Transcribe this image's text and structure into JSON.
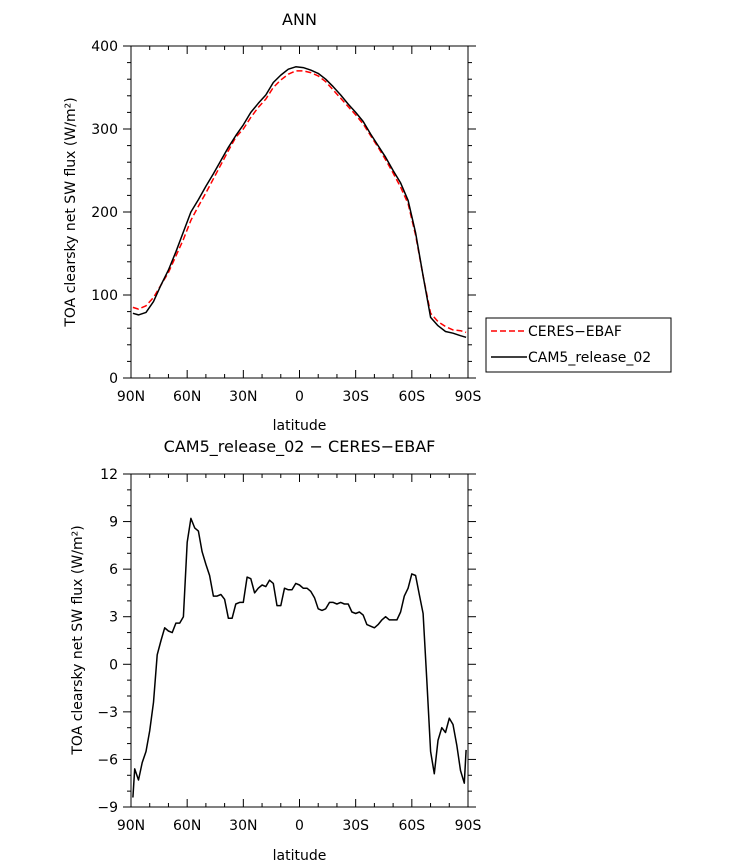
{
  "chart_data": [
    {
      "type": "line",
      "title": "ANN",
      "xlabel": "latitude",
      "ylabel": "TOA clearsky net SW flux (W/m²)",
      "xticks": [
        "90N",
        "60N",
        "30N",
        "0",
        "30S",
        "60S",
        "90S"
      ],
      "yticks": [
        "0",
        "100",
        "200",
        "300",
        "400"
      ],
      "xlim": [
        90,
        -90
      ],
      "ylim": [
        0,
        400
      ],
      "legend": {
        "placement": "right"
      },
      "series": [
        {
          "name": "CERES−EBAF",
          "color": "#ff0000",
          "dash": "dashed",
          "x": [
            89,
            86,
            82,
            78,
            74,
            70,
            66,
            62,
            58,
            54,
            50,
            46,
            42,
            38,
            34,
            30,
            26,
            22,
            18,
            14,
            10,
            6,
            2,
            -2,
            -6,
            -10,
            -14,
            -18,
            -22,
            -26,
            -30,
            -34,
            -38,
            -42,
            -46,
            -50,
            -54,
            -58,
            -62,
            -66,
            -70,
            -74,
            -78,
            -82,
            -86,
            -89
          ],
          "y": [
            85,
            83,
            87,
            97,
            112,
            127,
            147,
            167,
            190,
            207,
            223,
            240,
            257,
            274,
            290,
            300,
            314,
            326,
            336,
            350,
            359,
            366,
            370,
            370,
            368,
            364,
            357,
            347,
            337,
            327,
            317,
            306,
            292,
            278,
            263,
            247,
            230,
            210,
            172,
            123,
            78,
            68,
            62,
            58,
            57,
            55
          ]
        },
        {
          "name": "CAM5_release_02",
          "color": "#000000",
          "dash": "solid",
          "x": [
            89,
            86,
            82,
            78,
            74,
            70,
            66,
            62,
            58,
            54,
            50,
            46,
            42,
            38,
            34,
            30,
            26,
            22,
            18,
            14,
            10,
            6,
            2,
            -2,
            -6,
            -10,
            -14,
            -18,
            -22,
            -26,
            -30,
            -34,
            -38,
            -42,
            -46,
            -50,
            -54,
            -58,
            -62,
            -66,
            -70,
            -74,
            -78,
            -82,
            -86,
            -89
          ],
          "y": [
            78,
            76,
            79,
            92,
            112,
            130,
            152,
            176,
            200,
            215,
            231,
            246,
            262,
            278,
            292,
            305,
            320,
            331,
            341,
            356,
            365,
            372,
            375,
            374,
            371,
            367,
            360,
            351,
            341,
            330,
            320,
            309,
            294,
            280,
            266,
            250,
            235,
            214,
            175,
            123,
            73,
            63,
            56,
            54,
            51,
            49
          ]
        }
      ]
    },
    {
      "type": "line",
      "title": "CAM5_release_02 − CERES−EBAF",
      "xlabel": "latitude",
      "ylabel": "TOA clearsky net SW flux (W/m²)",
      "xticks": [
        "90N",
        "60N",
        "30N",
        "0",
        "30S",
        "60S",
        "90S"
      ],
      "yticks": [
        "−9",
        "−6",
        "−3",
        "0",
        "3",
        "6",
        "9",
        "12"
      ],
      "xlim": [
        90,
        -90
      ],
      "ylim": [
        -9,
        12
      ],
      "series": [
        {
          "color": "#000000",
          "dash": "solid",
          "x": [
            89,
            88,
            86,
            84,
            82,
            80,
            78,
            76,
            74,
            72,
            70,
            68,
            66,
            64,
            62,
            60,
            58,
            56,
            54,
            52,
            50,
            48,
            46,
            44,
            42,
            40,
            38,
            36,
            34,
            32,
            30,
            28,
            26,
            24,
            22,
            20,
            18,
            16,
            14,
            12,
            10,
            8,
            6,
            4,
            2,
            0,
            -2,
            -4,
            -6,
            -8,
            -10,
            -12,
            -14,
            -16,
            -18,
            -20,
            -22,
            -24,
            -26,
            -28,
            -30,
            -32,
            -34,
            -36,
            -38,
            -40,
            -42,
            -44,
            -46,
            -48,
            -50,
            -52,
            -54,
            -56,
            -58,
            -60,
            -62,
            -64,
            -66,
            -68,
            -70,
            -72,
            -74,
            -76,
            -78,
            -80,
            -82,
            -84,
            -86,
            -88,
            -89
          ],
          "y": [
            -8.4,
            -6.6,
            -7.3,
            -6.2,
            -5.5,
            -4.2,
            -2.4,
            0.6,
            1.5,
            2.3,
            2.1,
            2.0,
            2.6,
            2.6,
            3.0,
            7.7,
            9.2,
            8.6,
            8.4,
            7.1,
            6.3,
            5.6,
            4.3,
            4.3,
            4.4,
            4.1,
            2.9,
            2.9,
            3.8,
            3.9,
            3.9,
            5.5,
            5.4,
            4.5,
            4.8,
            5.0,
            4.9,
            5.3,
            5.1,
            3.7,
            3.7,
            4.8,
            4.7,
            4.7,
            5.1,
            5.0,
            4.8,
            4.8,
            4.6,
            4.2,
            3.5,
            3.4,
            3.5,
            3.9,
            3.9,
            3.8,
            3.9,
            3.8,
            3.8,
            3.3,
            3.2,
            3.3,
            3.1,
            2.5,
            2.4,
            2.3,
            2.5,
            2.8,
            3.0,
            2.8,
            2.8,
            2.8,
            3.3,
            4.3,
            4.8,
            5.7,
            5.6,
            4.4,
            3.2,
            -1.0,
            -5.5,
            -6.9,
            -4.8,
            -4.0,
            -4.3,
            -3.4,
            -3.8,
            -5.1,
            -6.7,
            -7.5,
            -5.4
          ]
        }
      ]
    }
  ]
}
